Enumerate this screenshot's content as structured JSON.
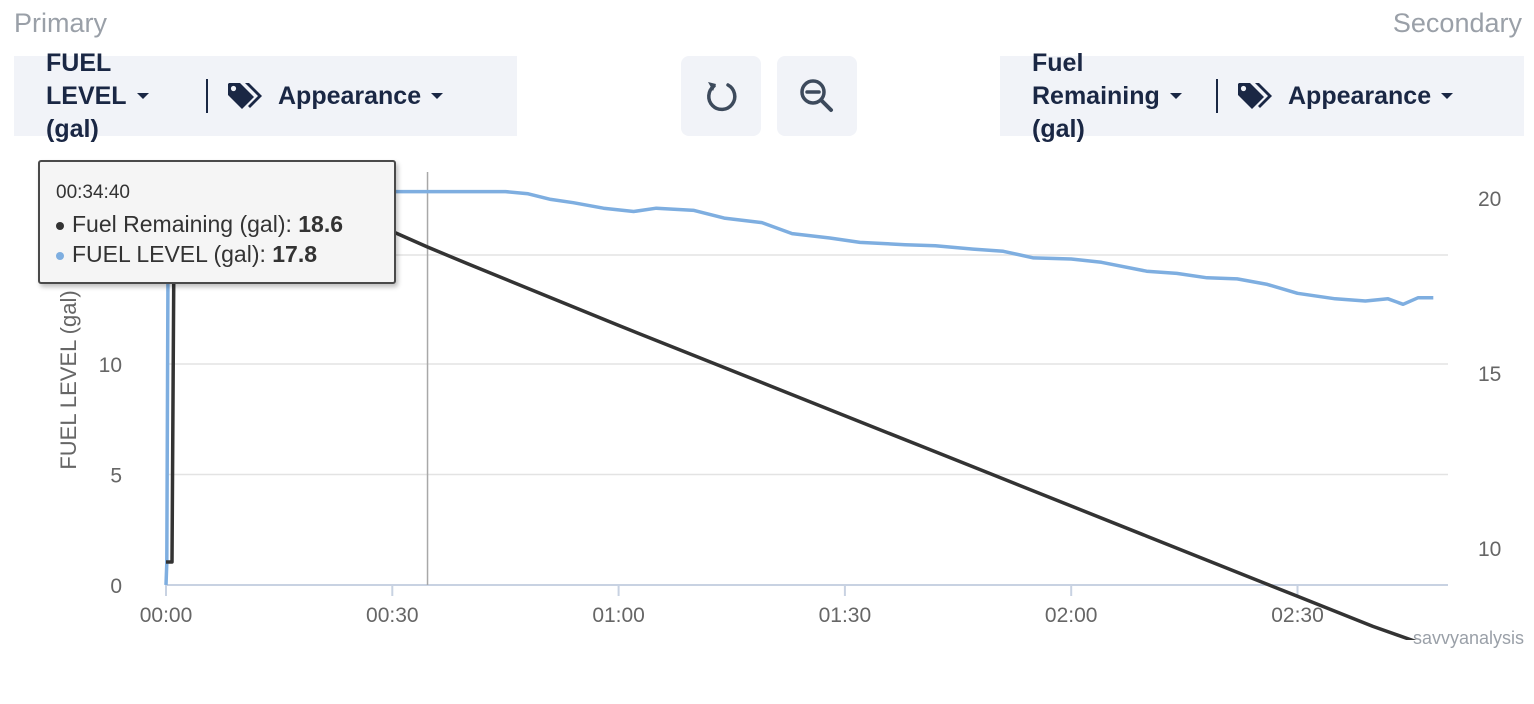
{
  "header": {
    "primary_label": "Primary",
    "secondary_label": "Secondary"
  },
  "primary_panel": {
    "parameter": "FUEL\nLEVEL\n(gal)",
    "appearance_label": "Appearance"
  },
  "secondary_panel": {
    "parameter": "Fuel\nRemaining\n(gal)",
    "appearance_label": "Appearance"
  },
  "toolbar": {
    "reset_icon": "reset-zoom-icon",
    "zoom_icon": "zoom-out-icon"
  },
  "tooltip": {
    "time": "00:34:40",
    "rows": [
      {
        "name": "Fuel Remaining (gal)",
        "value": "18.6",
        "color": "#333333"
      },
      {
        "name": "FUEL LEVEL (gal)",
        "value": "17.8",
        "color": "#7eaee0"
      }
    ]
  },
  "credit": "savvyanalysis",
  "chart_data": {
    "type": "line",
    "x_axis": {
      "ticks": [
        "00:00",
        "00:30",
        "01:00",
        "01:30",
        "02:00",
        "02:30"
      ],
      "range_minutes": [
        0,
        170
      ]
    },
    "y_left": {
      "label": "FUEL LEVEL (gal)",
      "ticks": [
        0,
        5,
        10
      ],
      "range": [
        0,
        19
      ]
    },
    "y_right": {
      "ticks": [
        10,
        15,
        20
      ],
      "range": [
        9,
        21
      ]
    },
    "crosshair_minutes": 34.67,
    "grid": true,
    "series": [
      {
        "name": "FUEL LEVEL (gal)",
        "axis": "left",
        "color": "#7eaee0",
        "points": [
          [
            0,
            0
          ],
          [
            0.1,
            1
          ],
          [
            0.3,
            17.8
          ],
          [
            10,
            17.8
          ],
          [
            20,
            17.8
          ],
          [
            30,
            17.8
          ],
          [
            40,
            17.8
          ],
          [
            45,
            17.8
          ],
          [
            48,
            17.7
          ],
          [
            51,
            17.45
          ],
          [
            54,
            17.3
          ],
          [
            58,
            17.05
          ],
          [
            62,
            16.9
          ],
          [
            65,
            17.05
          ],
          [
            70,
            16.95
          ],
          [
            74,
            16.6
          ],
          [
            79,
            16.4
          ],
          [
            83,
            15.9
          ],
          [
            88,
            15.7
          ],
          [
            92,
            15.5
          ],
          [
            98,
            15.4
          ],
          [
            102,
            15.35
          ],
          [
            107,
            15.2
          ],
          [
            111,
            15.1
          ],
          [
            115,
            14.8
          ],
          [
            120,
            14.75
          ],
          [
            124,
            14.6
          ],
          [
            130,
            14.2
          ],
          [
            134,
            14.1
          ],
          [
            138,
            13.9
          ],
          [
            142,
            13.85
          ],
          [
            146,
            13.6
          ],
          [
            150,
            13.2
          ],
          [
            155,
            12.95
          ],
          [
            159,
            12.85
          ],
          [
            162,
            12.95
          ],
          [
            164,
            12.7
          ],
          [
            166,
            13.0
          ],
          [
            168,
            13.0
          ]
        ]
      },
      {
        "name": "Fuel Remaining (gal)",
        "axis": "right",
        "color": "#333333",
        "points": [
          [
            0,
            9.6
          ],
          [
            0.8,
            9.6
          ],
          [
            1.1,
            20.2
          ],
          [
            5,
            20.2
          ],
          [
            10,
            20.2
          ],
          [
            20,
            20.0
          ],
          [
            34.67,
            18.6
          ],
          [
            40,
            18.12
          ],
          [
            50,
            17.24
          ],
          [
            60,
            16.36
          ],
          [
            70,
            15.5
          ],
          [
            80,
            14.64
          ],
          [
            90,
            13.78
          ],
          [
            100,
            12.92
          ],
          [
            110,
            12.06
          ],
          [
            120,
            11.2
          ],
          [
            130,
            10.34
          ],
          [
            140,
            9.48
          ],
          [
            150,
            8.62
          ],
          [
            160,
            7.76
          ],
          [
            170,
            7.0
          ]
        ]
      }
    ]
  }
}
